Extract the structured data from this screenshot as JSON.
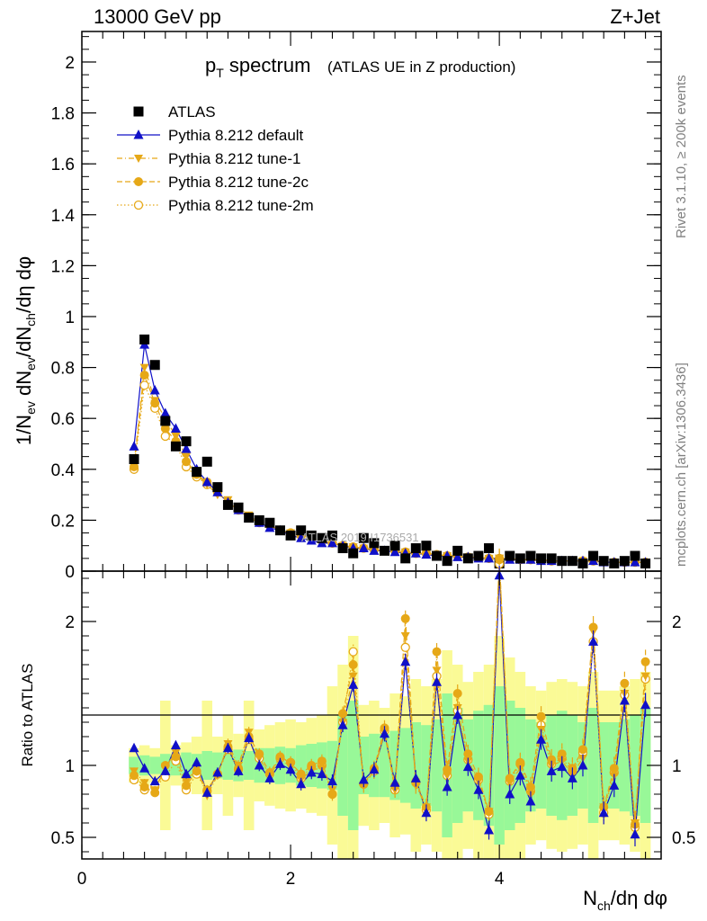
{
  "header": {
    "energy": "13000 GeV pp",
    "process": "Z+Jet",
    "title_main": "p",
    "title_sub": "T",
    "title_rest": " spectrum",
    "title_paren": "(ATLAS UE in Z production)",
    "side_text_top": "Rivet 3.1.10, ≥ 200k events",
    "side_text_bottom": "mcplots.cern.ch [arXiv:1306.3436]",
    "watermark": "ATLAS 2019  I1736531"
  },
  "colors": {
    "data": "#000000",
    "default": "#1010c8",
    "tune": "#e6a817",
    "band_inner": "#98f898",
    "band_outer": "#fafa96"
  },
  "legend": [
    {
      "name": "ATLAS",
      "style": "data"
    },
    {
      "name": "Pythia 8.212 default",
      "style": "default"
    },
    {
      "name": "Pythia 8.212 tune-1",
      "style": "tune1"
    },
    {
      "name": "Pythia 8.212 tune-2c",
      "style": "tune2c"
    },
    {
      "name": "Pythia 8.212 tune-2m",
      "style": "tune2m"
    }
  ],
  "chart_data": [
    {
      "type": "scatter",
      "title": "pT spectrum (ATLAS UE in Z production)",
      "xlabel": "N_ch/dη dφ",
      "ylabel": "1/N_ev dN_ev/dN_ch/dη dφ",
      "xlim": [
        0,
        5.55
      ],
      "ylim": [
        0,
        2.12
      ],
      "yticks": [
        {
          "value": 0,
          "label": "0"
        },
        {
          "value": 0.2,
          "label": "0.2"
        },
        {
          "value": 0.4,
          "label": "0.4"
        },
        {
          "value": 0.6,
          "label": "0.6"
        },
        {
          "value": 0.8,
          "label": "0.8"
        },
        {
          "value": 1.0,
          "label": "1"
        },
        {
          "value": 1.2,
          "label": "1.2"
        },
        {
          "value": 1.4,
          "label": "1.4"
        },
        {
          "value": 1.6,
          "label": "1.6"
        },
        {
          "value": 1.8,
          "label": "1.8"
        },
        {
          "value": 2.0,
          "label": "2"
        }
      ],
      "x": [
        0.5,
        0.6,
        0.7,
        0.8,
        0.9,
        1.0,
        1.1,
        1.2,
        1.3,
        1.4,
        1.5,
        1.6,
        1.7,
        1.8,
        1.9,
        2.0,
        2.1,
        2.2,
        2.3,
        2.4,
        2.5,
        2.6,
        2.7,
        2.8,
        2.9,
        3.0,
        3.1,
        3.2,
        3.3,
        3.4,
        3.5,
        3.6,
        3.7,
        3.8,
        3.9,
        4.0,
        4.1,
        4.2,
        4.3,
        4.4,
        4.5,
        4.6,
        4.7,
        4.8,
        4.9,
        5.0,
        5.1,
        5.2,
        5.3,
        5.4
      ],
      "series": [
        {
          "name": "ATLAS",
          "values": [
            0.44,
            0.91,
            0.81,
            0.59,
            0.49,
            0.51,
            0.39,
            0.43,
            0.33,
            0.26,
            0.25,
            0.21,
            0.2,
            0.19,
            0.16,
            0.14,
            0.16,
            0.14,
            0.13,
            0.14,
            0.09,
            0.07,
            0.13,
            0.11,
            0.08,
            0.1,
            0.05,
            0.09,
            0.1,
            0.06,
            0.04,
            0.08,
            0.05,
            0.06,
            0.09,
            0.03,
            0.06,
            0.05,
            0.06,
            0.05,
            0.05,
            0.04,
            0.04,
            0.03,
            0.06,
            0.04,
            0.03,
            0.04,
            0.06,
            0.03
          ]
        },
        {
          "name": "Pythia 8.212 default",
          "values": [
            0.49,
            0.89,
            0.71,
            0.62,
            0.56,
            0.48,
            0.4,
            0.35,
            0.31,
            0.27,
            0.24,
            0.21,
            0.19,
            0.17,
            0.16,
            0.14,
            0.13,
            0.12,
            0.11,
            0.11,
            0.1,
            0.09,
            0.09,
            0.08,
            0.08,
            0.075,
            0.07,
            0.07,
            0.065,
            0.06,
            0.06,
            0.055,
            0.055,
            0.05,
            0.05,
            0.05,
            0.045,
            0.045,
            0.045,
            0.04,
            0.04,
            0.04,
            0.04,
            0.04,
            0.04,
            0.035,
            0.035,
            0.035,
            0.035,
            0.035
          ]
        },
        {
          "name": "Pythia 8.212 tune-1",
          "values": [
            0.42,
            0.8,
            0.67,
            0.6,
            0.53,
            0.45,
            0.38,
            0.34,
            0.3,
            0.28,
            0.25,
            0.22,
            0.19,
            0.18,
            0.16,
            0.15,
            0.14,
            0.13,
            0.12,
            0.11,
            0.1,
            0.095,
            0.09,
            0.085,
            0.08,
            0.08,
            0.075,
            0.07,
            0.07,
            0.065,
            0.06,
            0.06,
            0.055,
            0.055,
            0.05,
            0.05,
            0.05,
            0.045,
            0.045,
            0.045,
            0.04,
            0.04,
            0.04,
            0.04,
            0.04,
            0.04,
            0.035,
            0.035,
            0.035,
            0.035
          ]
        },
        {
          "name": "Pythia 8.212 tune-2c",
          "values": [
            0.41,
            0.77,
            0.66,
            0.56,
            0.51,
            0.43,
            0.38,
            0.35,
            0.31,
            0.27,
            0.24,
            0.21,
            0.19,
            0.18,
            0.16,
            0.15,
            0.14,
            0.13,
            0.12,
            0.11,
            0.1,
            0.095,
            0.09,
            0.085,
            0.08,
            0.08,
            0.075,
            0.07,
            0.07,
            0.065,
            0.06,
            0.06,
            0.055,
            0.055,
            0.05,
            0.05,
            0.05,
            0.045,
            0.045,
            0.045,
            0.04,
            0.04,
            0.04,
            0.04,
            0.04,
            0.04,
            0.035,
            0.035,
            0.035,
            0.035
          ]
        },
        {
          "name": "Pythia 8.212 tune-2m",
          "values": [
            0.4,
            0.73,
            0.64,
            0.53,
            0.5,
            0.41,
            0.37,
            0.34,
            0.31,
            0.27,
            0.24,
            0.21,
            0.2,
            0.18,
            0.16,
            0.15,
            0.14,
            0.13,
            0.12,
            0.11,
            0.1,
            0.095,
            0.09,
            0.085,
            0.08,
            0.08,
            0.075,
            0.07,
            0.07,
            0.065,
            0.06,
            0.06,
            0.055,
            0.055,
            0.05,
            0.05,
            0.05,
            0.045,
            0.045,
            0.045,
            0.04,
            0.04,
            0.04,
            0.04,
            0.04,
            0.04,
            0.035,
            0.035,
            0.035,
            0.035
          ]
        }
      ]
    },
    {
      "type": "scatter",
      "title": "",
      "xlabel": "N_ch/dη dφ",
      "ylabel": "Ratio to ATLAS",
      "xlim": [
        0,
        5.55
      ],
      "ylim": [
        0.35,
        2.35
      ],
      "yticks": [
        {
          "value": 0.5,
          "label": "0.5"
        },
        {
          "value": 1.0,
          "label": "1"
        },
        {
          "value": 2.0,
          "label": "2"
        }
      ],
      "xticks": [
        {
          "value": 0,
          "label": "0"
        },
        {
          "value": 2,
          "label": "2"
        },
        {
          "value": 4,
          "label": "4"
        }
      ],
      "x": [
        0.5,
        0.6,
        0.7,
        0.8,
        0.9,
        1.0,
        1.1,
        1.2,
        1.3,
        1.4,
        1.5,
        1.6,
        1.7,
        1.8,
        1.9,
        2.0,
        2.1,
        2.2,
        2.3,
        2.4,
        2.5,
        2.6,
        2.7,
        2.8,
        2.9,
        3.0,
        3.1,
        3.2,
        3.3,
        3.4,
        3.5,
        3.6,
        3.7,
        3.8,
        3.9,
        4.0,
        4.1,
        4.2,
        4.3,
        4.4,
        4.5,
        4.6,
        4.7,
        4.8,
        4.9,
        5.0,
        5.1,
        5.2,
        5.3,
        5.4
      ],
      "band_inner": [
        0.06,
        0.07,
        0.06,
        0.08,
        0.07,
        0.09,
        0.08,
        0.1,
        0.09,
        0.1,
        0.11,
        0.1,
        0.12,
        0.12,
        0.13,
        0.12,
        0.14,
        0.15,
        0.16,
        0.17,
        0.35,
        0.45,
        0.2,
        0.22,
        0.22,
        0.24,
        0.26,
        0.3,
        0.28,
        0.32,
        0.5,
        0.4,
        0.32,
        0.38,
        0.42,
        0.55,
        0.45,
        0.4,
        0.32,
        0.3,
        0.35,
        0.38,
        0.35,
        0.3,
        0.4,
        0.3,
        0.3,
        0.32,
        0.35,
        0.4
      ],
      "band_outer": [
        0.12,
        0.14,
        0.12,
        0.45,
        0.14,
        0.16,
        0.2,
        0.45,
        0.2,
        0.35,
        0.22,
        0.45,
        0.25,
        0.28,
        0.3,
        0.32,
        0.3,
        0.33,
        0.35,
        0.55,
        0.7,
        0.9,
        0.42,
        0.45,
        0.4,
        0.5,
        0.48,
        0.6,
        0.55,
        0.6,
        0.8,
        0.7,
        0.58,
        0.65,
        0.7,
        0.9,
        0.75,
        0.65,
        0.55,
        0.52,
        0.58,
        0.6,
        0.58,
        0.55,
        0.65,
        0.52,
        0.52,
        0.55,
        0.6,
        0.65
      ],
      "series": [
        {
          "name": "Pythia 8.212 default",
          "values": [
            1.12,
            0.98,
            0.89,
            0.96,
            1.14,
            0.94,
            1.02,
            0.81,
            0.95,
            1.12,
            0.96,
            1.19,
            1.0,
            0.91,
            1.01,
            0.97,
            0.87,
            0.95,
            0.94,
            0.89,
            1.28,
            1.56,
            0.9,
            0.97,
            1.22,
            0.88,
            1.72,
            0.91,
            0.67,
            1.58,
            0.85,
            1.35,
            0.99,
            0.83,
            0.55,
            2.32,
            0.8,
            0.93,
            0.75,
            1.18,
            0.96,
            0.99,
            0.91,
            1.0,
            1.86,
            0.67,
            0.86,
            1.45,
            0.52,
            1.42
          ]
        },
        {
          "name": "Pythia 8.212 tune-1",
          "values": [
            0.96,
            0.88,
            0.83,
            0.99,
            1.09,
            0.89,
            0.98,
            0.79,
            0.93,
            1.15,
            1.0,
            1.23,
            1.05,
            0.93,
            1.04,
            0.99,
            0.9,
            0.97,
            0.98,
            0.83,
            1.3,
            1.62,
            0.86,
            0.96,
            1.23,
            0.83,
            1.9,
            0.86,
            0.71,
            1.66,
            0.93,
            1.4,
            1.03,
            0.89,
            0.68,
            2.44,
            0.88,
            0.98,
            0.8,
            1.25,
            1.0,
            1.03,
            0.94,
            1.05,
            1.93,
            0.71,
            0.93,
            1.5,
            0.6,
            1.62
          ]
        },
        {
          "name": "Pythia 8.212 tune-2c",
          "values": [
            0.93,
            0.85,
            0.81,
            1.0,
            1.06,
            0.86,
            0.96,
            0.83,
            0.94,
            1.13,
            0.98,
            1.2,
            1.08,
            0.95,
            1.06,
            1.02,
            0.94,
            1.0,
            1.03,
            0.8,
            1.36,
            1.7,
            0.87,
            0.98,
            1.26,
            0.86,
            2.02,
            0.89,
            0.71,
            1.79,
            0.97,
            1.5,
            1.08,
            0.92,
            0.68,
            2.43,
            0.91,
            1.02,
            0.85,
            1.34,
            1.04,
            1.08,
            0.98,
            1.11,
            1.96,
            0.71,
            0.98,
            1.57,
            0.59,
            1.72
          ]
        },
        {
          "name": "Pythia 8.212 tune-2m",
          "values": [
            0.9,
            0.83,
            0.85,
            0.92,
            1.03,
            0.83,
            0.94,
            0.82,
            0.94,
            1.11,
            0.97,
            1.18,
            1.05,
            0.94,
            1.05,
            1.02,
            0.91,
            0.99,
            1.0,
            0.8,
            1.3,
            1.79,
            0.87,
            0.96,
            1.24,
            0.83,
            1.82,
            0.88,
            0.69,
            1.62,
            0.93,
            1.38,
            1.04,
            0.9,
            0.66,
            2.4,
            0.89,
            1.01,
            0.82,
            1.28,
            1.01,
            1.05,
            0.96,
            1.09,
            1.86,
            0.67,
            0.95,
            1.49,
            0.57,
            1.6
          ]
        }
      ]
    }
  ]
}
